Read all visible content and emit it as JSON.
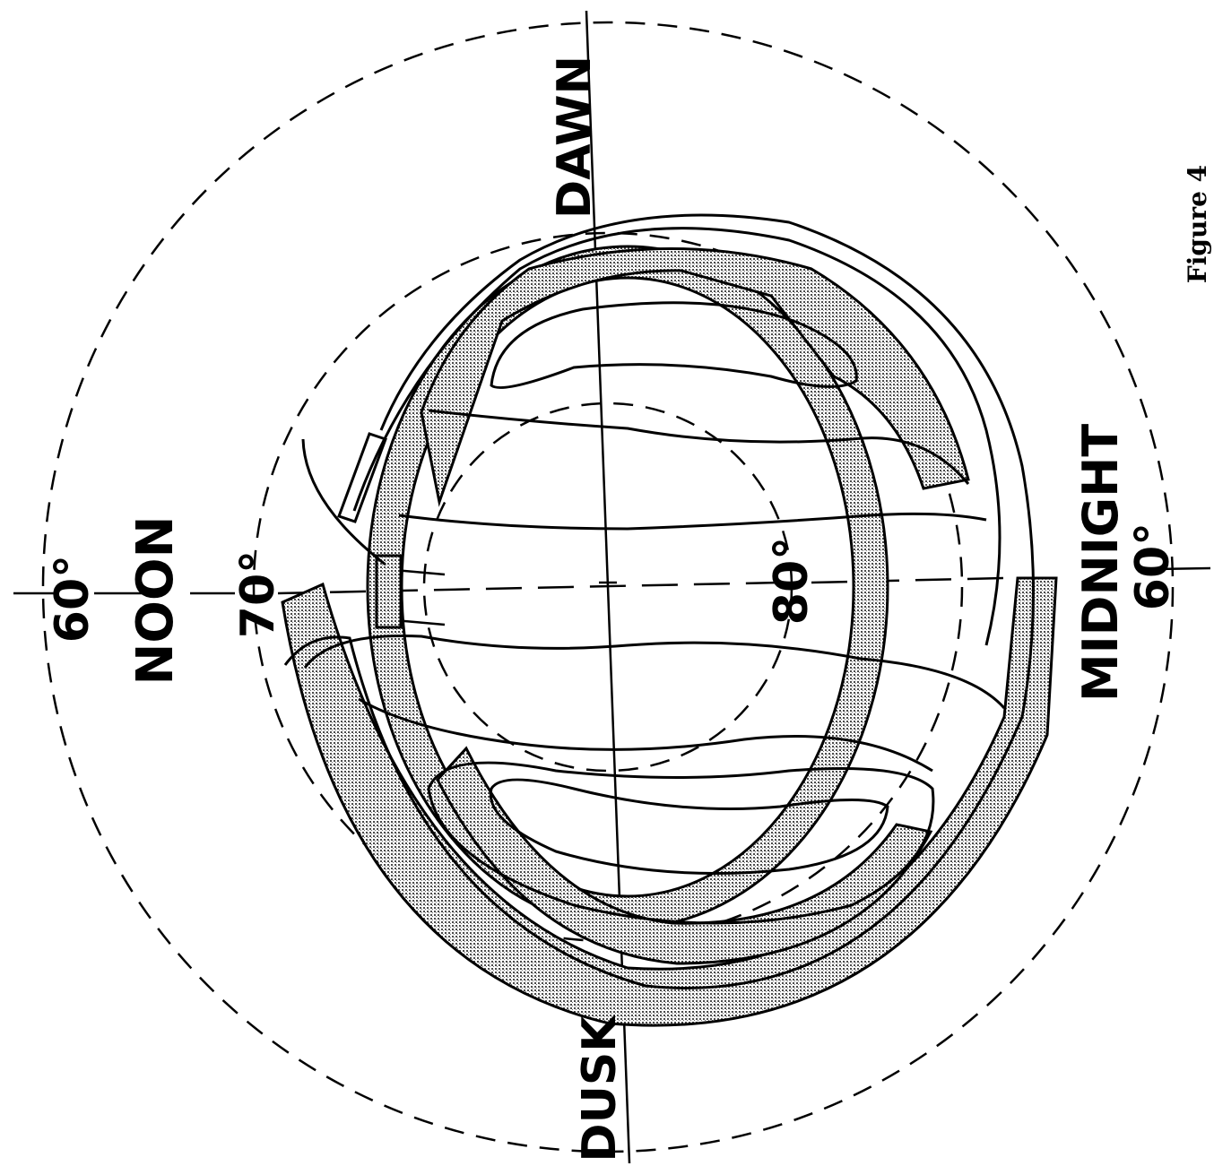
{
  "figure": {
    "caption": "Figure 4",
    "labels": {
      "noon": "NOON",
      "midnight": "MIDNIGHT",
      "dawn": "DAWN",
      "dusk": "DUSK"
    },
    "latitude_labels": {
      "lat60_left": "60°",
      "lat60_right": "60°",
      "lat70": "70°",
      "lat80": "80°"
    }
  },
  "colors": {
    "ink": "#000000",
    "background": "#ffffff",
    "hatch": "#9a9a9a"
  }
}
